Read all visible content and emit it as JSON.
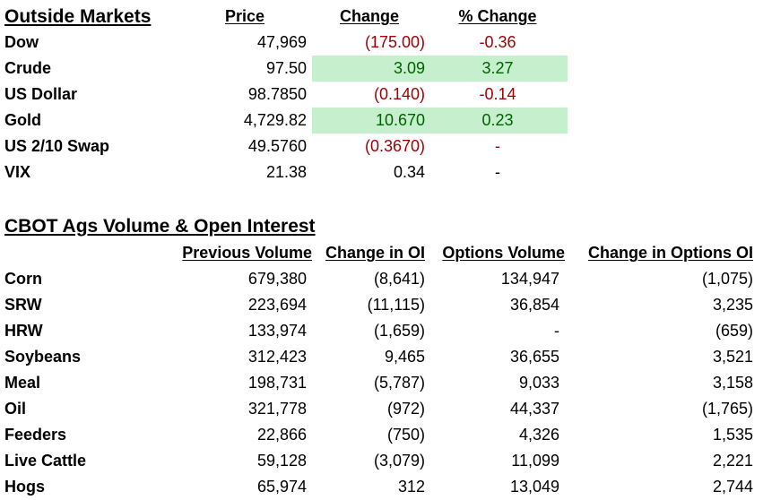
{
  "outside_markets": {
    "title": "Outside Markets",
    "headers": {
      "price": "Price",
      "change": "Change",
      "pct_change": "% Change"
    },
    "rows": [
      {
        "name": "Dow",
        "price": "47,969",
        "change": "(175.00)",
        "pct": "-0.36",
        "tone": "neg",
        "highlight": false
      },
      {
        "name": "Crude",
        "price": "97.50",
        "change": "3.09",
        "pct": "3.27",
        "tone": "pos",
        "highlight": true
      },
      {
        "name": "US Dollar",
        "price": "98.7850",
        "change": "(0.140)",
        "pct": "-0.14",
        "tone": "neg",
        "highlight": false
      },
      {
        "name": "Gold",
        "price": "4,729.82",
        "change": "10.670",
        "pct": "0.23",
        "tone": "pos",
        "highlight": true
      },
      {
        "name": "US 2/10 Swap",
        "price": "49.5760",
        "change": "(0.3670)",
        "pct": "-",
        "tone": "neg",
        "highlight": false
      },
      {
        "name": "VIX",
        "price": "21.38",
        "change": "0.34",
        "pct": "-",
        "tone": "plain",
        "highlight": false
      }
    ]
  },
  "cbot": {
    "title": "CBOT Ags Volume & Open Interest",
    "headers": {
      "prev_volume": "Previous Volume",
      "change_oi": "Change in OI",
      "options_volume": "Options Volume",
      "change_options_oi": "Change in Options OI"
    },
    "rows": [
      {
        "name": "Corn",
        "prev_volume": "679,380",
        "change_oi": "(8,641)",
        "options_volume": "134,947",
        "change_options_oi": "(1,075)"
      },
      {
        "name": "SRW",
        "prev_volume": "223,694",
        "change_oi": "(11,115)",
        "options_volume": "36,854",
        "change_options_oi": "3,235"
      },
      {
        "name": "HRW",
        "prev_volume": "133,974",
        "change_oi": "(1,659)",
        "options_volume": "-",
        "change_options_oi": "(659)"
      },
      {
        "name": "Soybeans",
        "prev_volume": "312,423",
        "change_oi": "9,465",
        "options_volume": "36,655",
        "change_options_oi": "3,521"
      },
      {
        "name": "Meal",
        "prev_volume": "198,731",
        "change_oi": "(5,787)",
        "options_volume": "9,033",
        "change_options_oi": "3,158"
      },
      {
        "name": "Oil",
        "prev_volume": "321,778",
        "change_oi": "(972)",
        "options_volume": "44,337",
        "change_options_oi": "(1,765)"
      },
      {
        "name": "Feeders",
        "prev_volume": "22,866",
        "change_oi": "(750)",
        "options_volume": "4,326",
        "change_options_oi": "1,535"
      },
      {
        "name": "Live Cattle",
        "prev_volume": "59,128",
        "change_oi": "(3,079)",
        "options_volume": "11,099",
        "change_options_oi": "2,221"
      },
      {
        "name": "Hogs",
        "prev_volume": "65,974",
        "change_oi": "312",
        "options_volume": "13,049",
        "change_options_oi": "2,744"
      }
    ]
  },
  "colors": {
    "negative_text": "#9c0006",
    "positive_text": "#006100",
    "positive_fill": "#c6efce"
  }
}
